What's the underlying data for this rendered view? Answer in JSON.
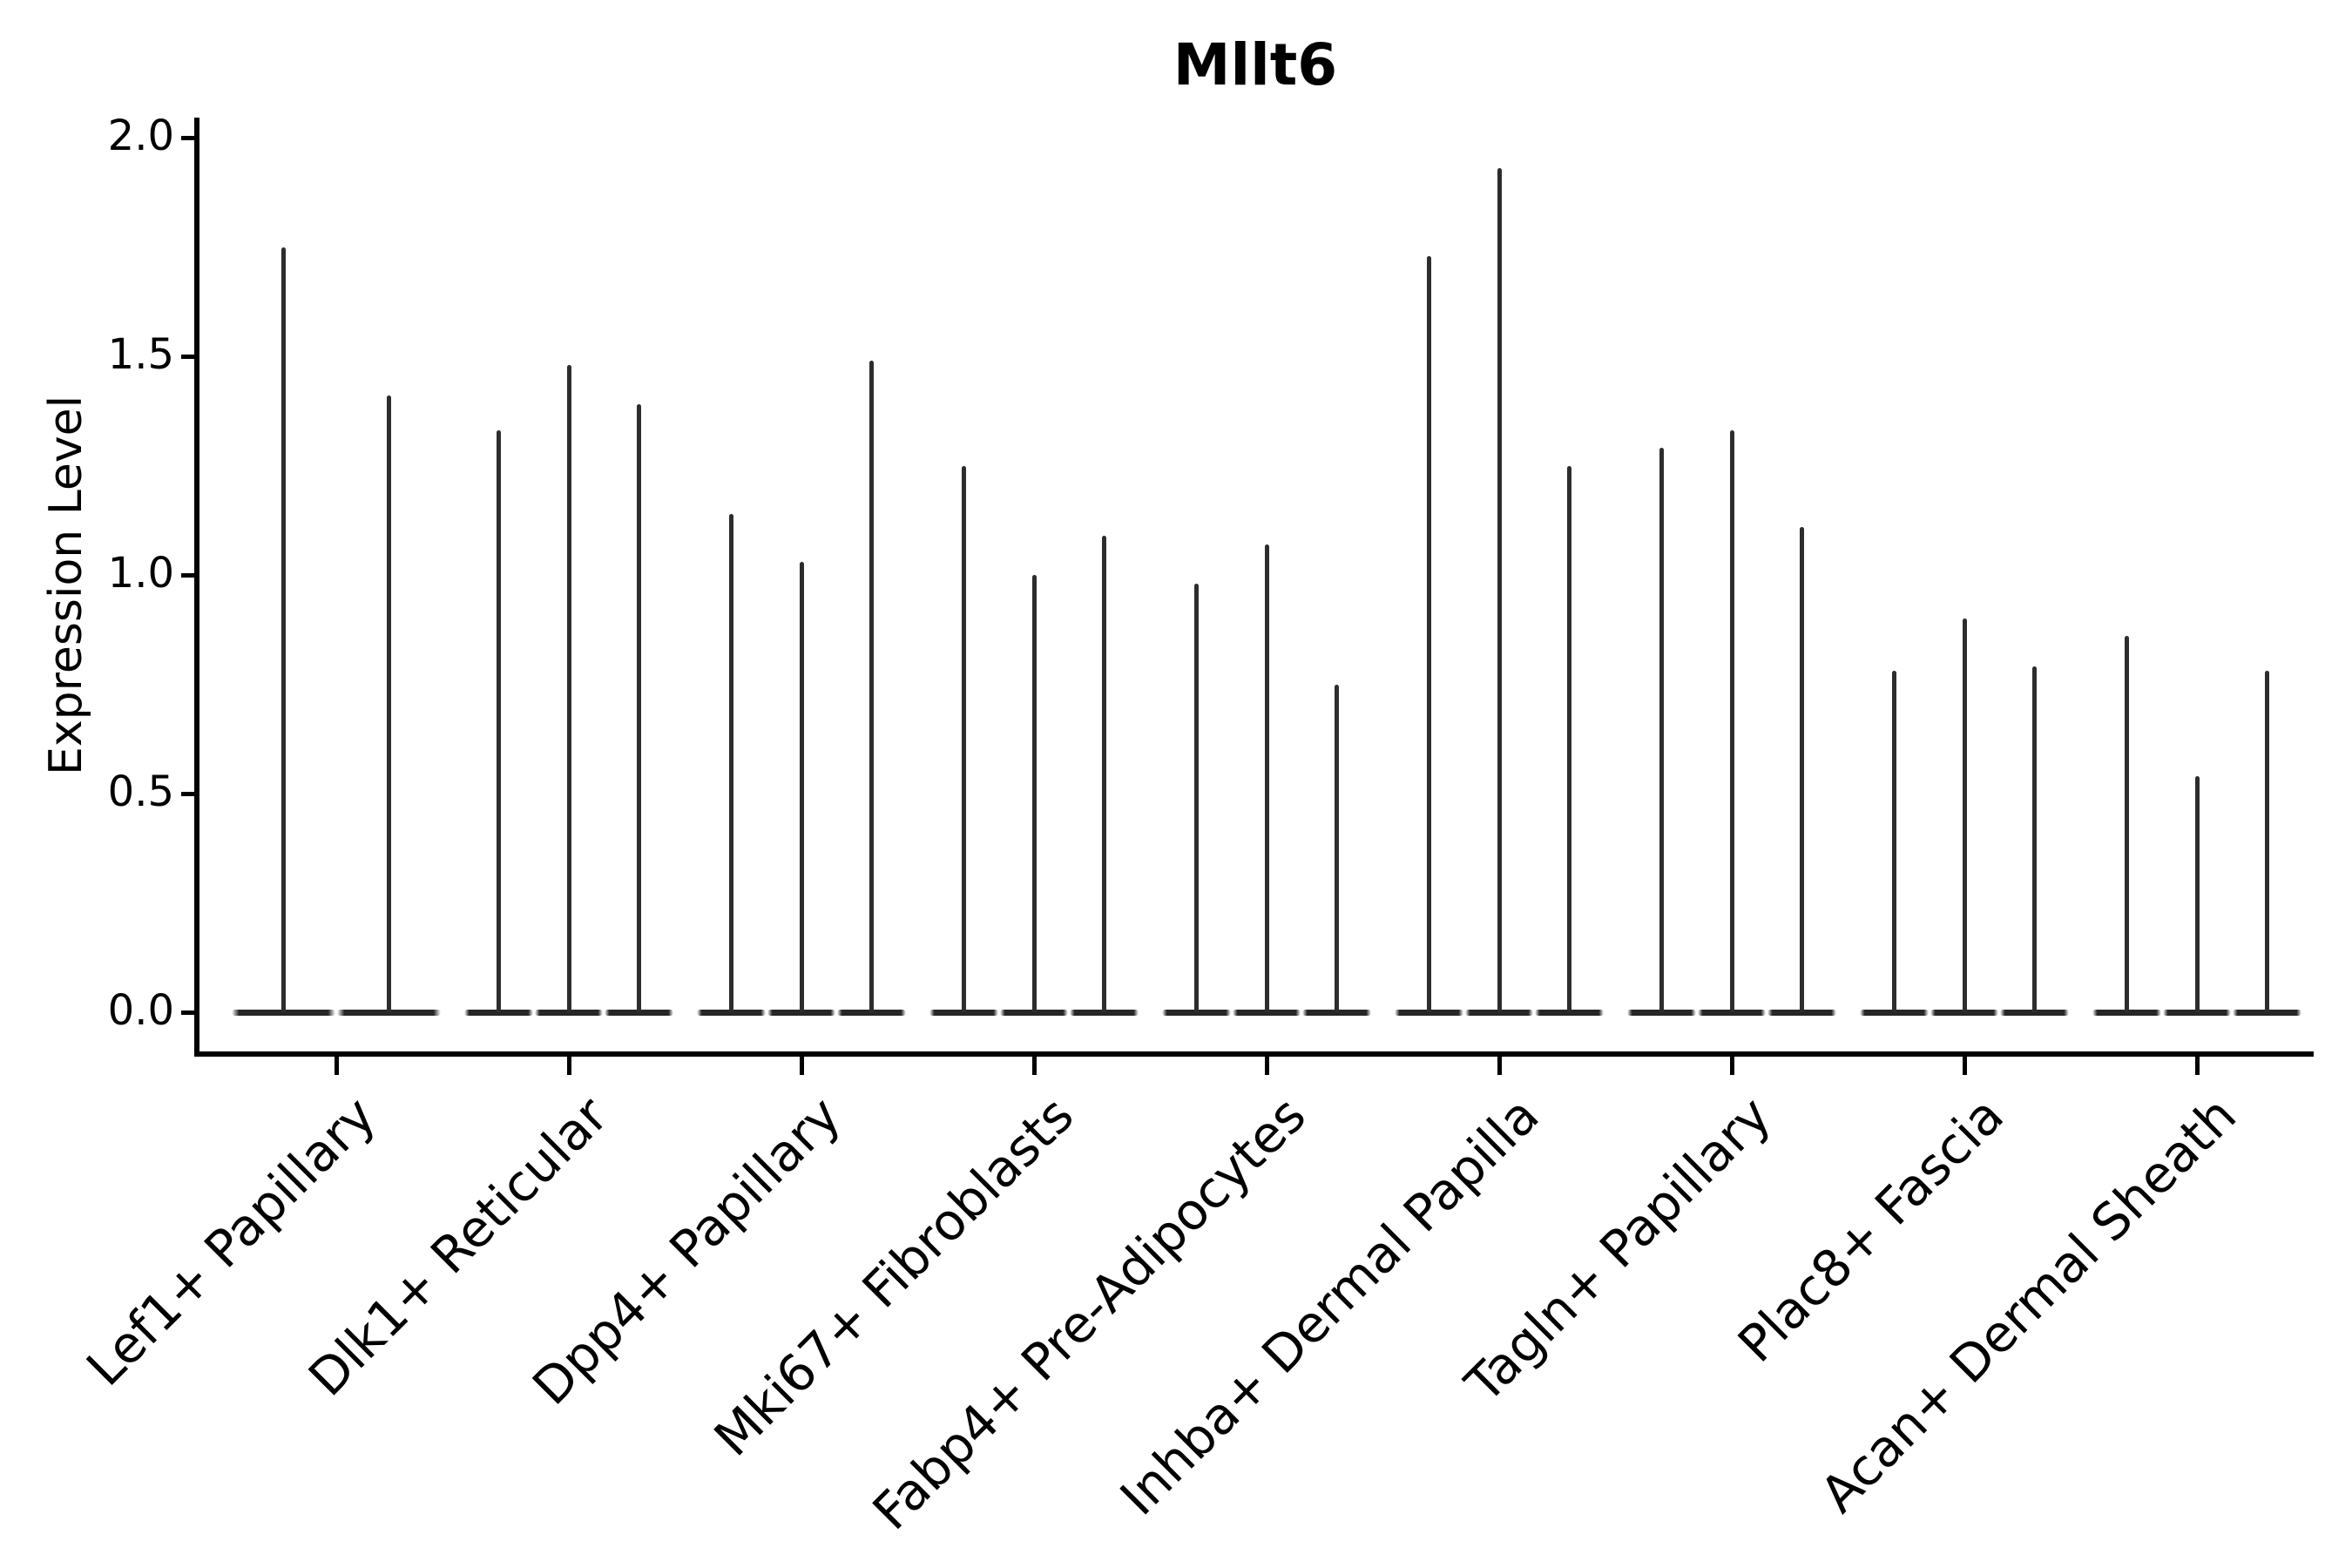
{
  "title": "Mllt6",
  "y_axis": {
    "label": "Expression Level",
    "tick_labels": [
      "0.0",
      "0.5",
      "1.0",
      "1.5",
      "2.0"
    ],
    "tick_values": [
      0.0,
      0.5,
      1.0,
      1.5,
      2.0
    ]
  },
  "colors": {
    "spike": "#2d2d2d",
    "base": "#262626",
    "axis": "#000000",
    "background": "#ffffff"
  },
  "chart_data": {
    "type": "violin",
    "title": "Mllt6",
    "xlabel": "",
    "ylabel": "Expression Level",
    "ylim": [
      -0.1,
      2.05
    ],
    "yticks": [
      0.0,
      0.5,
      1.0,
      1.5,
      2.0
    ],
    "grid": false,
    "legend": false,
    "categories": [
      "Lef1+ Papillary",
      "Dlk1+ Reticular",
      "Dpp4+ Papillary",
      "Mki67+ Fibroblasts",
      "Fabp4+ Pre-Adipocytes",
      "Inhba+ Dermal Papilla",
      "Tagln+ Papillary",
      "Plac8+ Fascia",
      "Acan+ Dermal Sheath"
    ],
    "description": "Needle-shaped violin plot; each group shows 2-3 thin violins rising from a flat base at 0; values below are the peak (max) expression level of each violin, left to right within each group.",
    "groups": [
      {
        "category": "Lef1+ Papillary",
        "violin_peaks": [
          1.75,
          1.41
        ]
      },
      {
        "category": "Dlk1+ Reticular",
        "violin_peaks": [
          1.33,
          1.48,
          1.39
        ]
      },
      {
        "category": "Dpp4+ Papillary",
        "violin_peaks": [
          1.14,
          1.03,
          1.49
        ]
      },
      {
        "category": "Mki67+ Fibroblasts",
        "violin_peaks": [
          1.25,
          1.0,
          1.09
        ]
      },
      {
        "category": "Fabp4+ Pre-Adipocytes",
        "violin_peaks": [
          0.98,
          1.07,
          0.75
        ]
      },
      {
        "category": "Inhba+ Dermal Papilla",
        "violin_peaks": [
          1.73,
          1.93,
          1.25
        ]
      },
      {
        "category": "Tagln+ Papillary",
        "violin_peaks": [
          1.29,
          1.33,
          1.11
        ]
      },
      {
        "category": "Plac8+ Fascia",
        "violin_peaks": [
          0.78,
          0.9,
          0.79
        ]
      },
      {
        "category": "Acan+ Dermal Sheath",
        "violin_peaks": [
          0.86,
          0.54,
          0.78
        ]
      }
    ]
  }
}
